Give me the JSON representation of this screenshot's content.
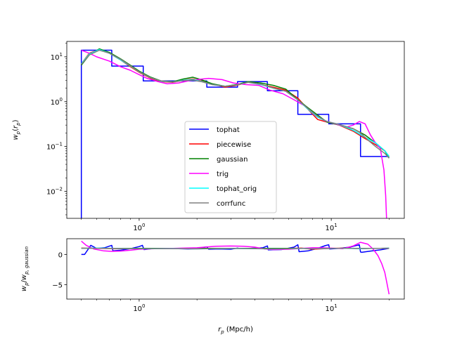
{
  "chart_data": [
    {
      "type": "line",
      "panel": "top",
      "xscale": "log",
      "yscale": "log",
      "xlim": [
        0.42,
        24
      ],
      "ylim": [
        0.0025,
        22
      ],
      "xticks": [
        {
          "value": 1,
          "label": "10^0"
        },
        {
          "value": 10,
          "label": "10^1"
        }
      ],
      "yticks": [
        {
          "value": 0.01,
          "label": "10^-2"
        },
        {
          "value": 0.1,
          "label": "10^-1"
        },
        {
          "value": 1,
          "label": "10^0"
        },
        {
          "value": 10,
          "label": "10^1"
        }
      ],
      "ylabel": "w_p(r_p)",
      "legend": {
        "position": "lower-center",
        "entries": [
          "tophat",
          "piecewise",
          "gaussian",
          "trig",
          "tophat_orig",
          "corrfunc"
        ]
      },
      "series": [
        {
          "name": "tophat",
          "color": "#0000ff",
          "style": "step",
          "x": [
            0.5,
            0.5,
            0.72,
            0.72,
            1.05,
            1.05,
            1.55,
            1.55,
            2.25,
            2.25,
            3.25,
            3.25,
            4.65,
            4.65,
            6.7,
            6.7,
            9.7,
            9.7,
            14.2,
            14.2,
            20.0
          ],
          "y": [
            0.0025,
            14,
            14,
            6.2,
            6.2,
            2.9,
            2.9,
            2.9,
            2.9,
            2.1,
            2.1,
            2.8,
            2.8,
            1.75,
            1.75,
            0.52,
            0.52,
            0.32,
            0.32,
            0.06,
            0.06
          ]
        },
        {
          "name": "piecewise",
          "color": "#ff0000",
          "x": [
            0.5,
            0.55,
            0.62,
            0.7,
            0.8,
            0.9,
            1.0,
            1.15,
            1.3,
            1.5,
            1.7,
            1.9,
            2.1,
            2.4,
            2.8,
            3.2,
            3.7,
            4.3,
            5.0,
            5.8,
            6.7,
            7.5,
            8.5,
            9.5,
            11.0,
            13.0,
            15.0,
            17.0,
            19.0,
            20.0
          ],
          "y": [
            7,
            12,
            14.5,
            12,
            8.5,
            6,
            4.5,
            3.3,
            2.8,
            2.7,
            3.0,
            3.2,
            2.9,
            2.5,
            2.1,
            2.3,
            2.7,
            2.4,
            2.1,
            1.8,
            1.2,
            0.7,
            0.4,
            0.35,
            0.3,
            0.22,
            0.15,
            0.11,
            0.08,
            0.06
          ]
        },
        {
          "name": "gaussian",
          "color": "#008000",
          "x": [
            0.5,
            0.55,
            0.62,
            0.7,
            0.8,
            0.9,
            1.0,
            1.15,
            1.3,
            1.5,
            1.7,
            1.9,
            2.1,
            2.4,
            2.8,
            3.2,
            3.7,
            4.3,
            5.0,
            5.8,
            6.7,
            7.5,
            8.5,
            9.5,
            11.0,
            13.0,
            15.0,
            17.0,
            19.0,
            20.0
          ],
          "y": [
            6.5,
            11,
            15,
            12.5,
            9,
            6.5,
            4.8,
            3.5,
            2.9,
            2.8,
            3.2,
            3.5,
            3.1,
            2.5,
            2.2,
            2.4,
            2.8,
            2.6,
            2.3,
            1.9,
            1.1,
            0.75,
            0.5,
            0.35,
            0.3,
            0.25,
            0.18,
            0.12,
            0.08,
            0.055
          ]
        },
        {
          "name": "trig",
          "color": "#ff00ff",
          "x": [
            0.5,
            0.55,
            0.6,
            0.7,
            0.8,
            0.9,
            1.0,
            1.1,
            1.25,
            1.4,
            1.6,
            1.8,
            2.0,
            2.3,
            2.7,
            3.1,
            3.6,
            4.2,
            4.8,
            5.6,
            6.4,
            7.3,
            8.2,
            9.2,
            10.5,
            12.0,
            13.0,
            14.0,
            15.0,
            16.0,
            17.0,
            18.0,
            18.8,
            19.2,
            19.4
          ],
          "y": [
            14,
            12,
            10,
            8,
            6,
            5,
            4,
            3.3,
            2.8,
            2.5,
            2.6,
            2.9,
            3.1,
            3.3,
            3.1,
            2.6,
            2.4,
            2.3,
            1.8,
            1.5,
            1.1,
            0.8,
            0.5,
            0.38,
            0.32,
            0.27,
            0.3,
            0.36,
            0.32,
            0.18,
            0.12,
            0.09,
            0.03,
            0.008,
            0.0025
          ]
        },
        {
          "name": "tophat_orig",
          "color": "#00ffff",
          "x": [
            0.5,
            0.55,
            0.62,
            0.7,
            0.8,
            0.9,
            1.0,
            1.15,
            1.3,
            1.5,
            1.7,
            1.9,
            2.1,
            2.4,
            2.8,
            3.2,
            3.7,
            4.3,
            5.0,
            5.8,
            6.7,
            7.5,
            8.5,
            9.5,
            11.0,
            13.0,
            15.0,
            17.0,
            19.0,
            20.0
          ],
          "y": [
            7,
            11.5,
            14.5,
            12,
            8.5,
            6.2,
            4.6,
            3.4,
            2.85,
            2.75,
            3.0,
            3.1,
            2.85,
            2.4,
            2.2,
            2.35,
            2.7,
            2.4,
            2.0,
            1.7,
            1.1,
            0.7,
            0.45,
            0.36,
            0.31,
            0.23,
            0.16,
            0.12,
            0.08,
            0.06
          ]
        },
        {
          "name": "corrfunc",
          "color": "#808080",
          "x": [
            0.5,
            0.55,
            0.62,
            0.7,
            0.8,
            0.9,
            1.0,
            1.15,
            1.3,
            1.5,
            1.7,
            1.9,
            2.1,
            2.4,
            2.8,
            3.2,
            3.7,
            4.3,
            5.0,
            5.8,
            6.7,
            7.5,
            8.5,
            9.5,
            11.0,
            13.0,
            14.2,
            15.5,
            17.0,
            19.0,
            20.0
          ],
          "y": [
            6.8,
            11,
            14,
            12,
            8.8,
            6.3,
            4.6,
            3.4,
            2.9,
            2.75,
            2.95,
            3.0,
            2.8,
            2.4,
            2.2,
            2.35,
            2.7,
            2.45,
            2.0,
            1.7,
            1.1,
            0.72,
            0.47,
            0.36,
            0.31,
            0.25,
            0.2,
            0.14,
            0.1,
            0.07,
            0.055
          ]
        }
      ]
    },
    {
      "type": "line",
      "panel": "bottom",
      "xscale": "log",
      "yscale": "linear",
      "xlim": [
        0.42,
        24
      ],
      "ylim": [
        -7.4,
        2.6
      ],
      "xticks": [
        {
          "value": 1,
          "label": "10^0"
        },
        {
          "value": 10,
          "label": "10^1"
        }
      ],
      "yticks": [
        {
          "value": -5,
          "label": "−5"
        },
        {
          "value": 0,
          "label": "0"
        }
      ],
      "xlabel": "r_p (Mpc/h)",
      "ylabel": "w_p/w_p,gaussian",
      "series": [
        {
          "name": "tophat",
          "color": "#0000ff",
          "x": [
            0.5,
            0.52,
            0.56,
            0.6,
            0.66,
            0.72,
            0.73,
            0.8,
            0.9,
            1.0,
            1.04,
            1.06,
            1.2,
            1.4,
            1.6,
            1.8,
            2.0,
            2.2,
            2.25,
            2.3,
            2.6,
            3.0,
            3.25,
            3.3,
            3.8,
            4.4,
            4.65,
            4.7,
            5.5,
            6.4,
            6.7,
            6.8,
            7.6,
            8.5,
            9.3,
            9.7,
            9.8,
            11.0,
            12.5,
            14.0,
            14.2,
            14.4,
            16.0,
            18.0,
            20.0
          ],
          "y": [
            0.0,
            0.0,
            1.5,
            1.0,
            1.1,
            1.5,
            0.6,
            0.7,
            0.95,
            1.3,
            1.5,
            0.8,
            1.0,
            1.0,
            0.95,
            0.9,
            0.95,
            1.2,
            1.25,
            0.85,
            0.9,
            0.85,
            1.05,
            1.0,
            1.0,
            1.1,
            1.4,
            0.75,
            0.8,
            1.2,
            1.6,
            0.45,
            0.6,
            1.0,
            1.45,
            1.6,
            0.9,
            1.0,
            1.2,
            1.6,
            0.4,
            0.35,
            0.55,
            0.75,
            1.0
          ]
        },
        {
          "name": "piecewise",
          "color": "#ff0000",
          "x": [
            0.5,
            0.6,
            0.8,
            1.0,
            1.5,
            2.0,
            3.0,
            4.0,
            5.0,
            6.0,
            7.0,
            8.0,
            10.0,
            12.0,
            14.0,
            16.0,
            18.0,
            20.0
          ],
          "y": [
            1.05,
            1.0,
            0.95,
            0.95,
            0.97,
            0.93,
            1.0,
            1.0,
            0.95,
            1.0,
            1.05,
            0.85,
            1.0,
            1.05,
            0.95,
            1.0,
            1.0,
            1.05
          ]
        },
        {
          "name": "gaussian",
          "color": "#008000",
          "x": [
            0.5,
            1.0,
            2.0,
            5.0,
            10.0,
            20.0
          ],
          "y": [
            1.0,
            1.0,
            1.0,
            1.0,
            1.0,
            1.0
          ]
        },
        {
          "name": "trig",
          "color": "#ff00ff",
          "x": [
            0.5,
            0.53,
            0.58,
            0.65,
            0.72,
            0.8,
            0.9,
            1.0,
            1.2,
            1.5,
            2.0,
            2.5,
            3.0,
            3.5,
            4.0,
            4.5,
            5.0,
            6.0,
            7.0,
            8.0,
            9.0,
            10.0,
            11.5,
            13.0,
            14.2,
            15.5,
            16.5,
            17.5,
            18.3,
            19.0,
            19.5,
            20.0
          ],
          "y": [
            2.2,
            1.5,
            0.9,
            0.6,
            0.5,
            0.55,
            0.7,
            0.85,
            0.95,
            1.0,
            1.1,
            1.35,
            1.4,
            1.35,
            1.2,
            0.9,
            0.8,
            0.85,
            1.0,
            1.1,
            1.1,
            1.05,
            0.95,
            1.4,
            2.0,
            1.7,
            0.9,
            -0.2,
            -1.5,
            -3.0,
            -4.8,
            -6.6
          ]
        },
        {
          "name": "tophat_orig",
          "color": "#00ffff",
          "x": [
            0.5,
            0.6,
            0.8,
            1.0,
            1.5,
            2.0,
            3.0,
            4.0,
            5.0,
            6.0,
            7.0,
            8.0,
            10.0,
            12.0,
            14.0,
            16.0,
            18.0,
            20.0
          ],
          "y": [
            1.0,
            1.05,
            0.98,
            0.95,
            0.97,
            0.92,
            0.98,
            0.95,
            0.92,
            0.95,
            1.0,
            0.93,
            1.0,
            1.0,
            0.95,
            0.98,
            1.0,
            1.05
          ]
        },
        {
          "name": "corrfunc",
          "color": "#808080",
          "x": [
            0.5,
            0.6,
            0.8,
            1.0,
            1.5,
            2.0,
            3.0,
            4.0,
            5.0,
            6.0,
            7.0,
            8.0,
            10.0,
            12.0,
            14.0,
            16.0,
            18.0,
            20.0
          ],
          "y": [
            1.02,
            1.0,
            0.97,
            0.96,
            0.96,
            0.93,
            0.98,
            0.96,
            0.92,
            0.95,
            1.0,
            0.93,
            1.0,
            1.02,
            1.0,
            1.0,
            1.0,
            1.0
          ]
        }
      ]
    }
  ]
}
